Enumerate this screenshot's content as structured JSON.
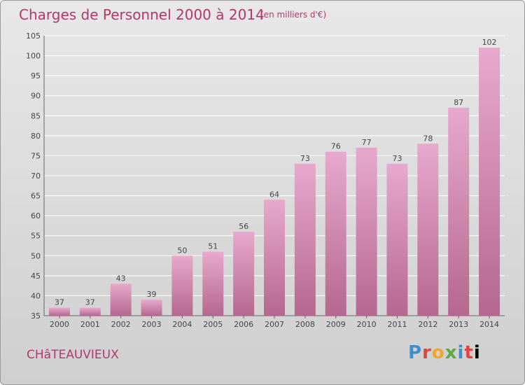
{
  "header": {
    "title": "Charges de Personnel 2000 à 2014",
    "unit": "(en milliers d'€)"
  },
  "footer": {
    "location": "CHâTEAUVIEUX",
    "logo": "Proxiti"
  },
  "colors": {
    "bar_top": "#e7a9cd",
    "bar_bottom": "#b5678f",
    "accent": "#b2386d"
  },
  "chart_data": {
    "type": "bar",
    "categories": [
      "2000",
      "2001",
      "2002",
      "2003",
      "2004",
      "2005",
      "2006",
      "2007",
      "2008",
      "2009",
      "2010",
      "2011",
      "2012",
      "2013",
      "2014"
    ],
    "values": [
      37,
      37,
      43,
      39,
      50,
      51,
      56,
      64,
      73,
      76,
      77,
      73,
      78,
      87,
      102
    ],
    "ylim": [
      35,
      105
    ],
    "yticks": [
      35,
      40,
      45,
      50,
      55,
      60,
      65,
      70,
      75,
      80,
      85,
      90,
      95,
      100,
      105
    ],
    "grid": "horizontal",
    "data_labels": true
  }
}
